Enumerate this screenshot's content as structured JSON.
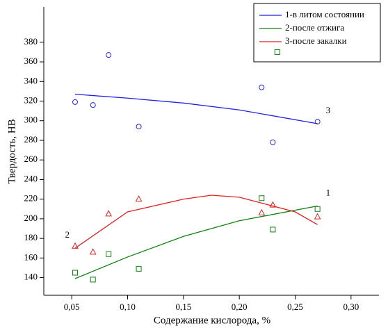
{
  "chart_data": {
    "type": "scatter",
    "x_label": "Содержание кислорода, %",
    "y_label": "Твердость, HB",
    "xlim": [
      0.025,
      0.325
    ],
    "ylim": [
      122,
      416
    ],
    "xticks": [
      {
        "value": 0.05,
        "label": "0,05"
      },
      {
        "value": 0.1,
        "label": "0,10"
      },
      {
        "value": 0.15,
        "label": "0,15"
      },
      {
        "value": 0.2,
        "label": "0,20"
      },
      {
        "value": 0.25,
        "label": "0,25"
      },
      {
        "value": 0.3,
        "label": "0,30"
      }
    ],
    "yticks": [
      140,
      160,
      180,
      200,
      220,
      240,
      260,
      280,
      300,
      320,
      340,
      360,
      380
    ],
    "legend": "top-right",
    "series": [
      {
        "name": "1-в литом состоянии",
        "color": "#2020e0",
        "marker": "circle",
        "x": [
          0.053,
          0.069,
          0.083,
          0.11,
          0.22,
          0.23,
          0.27
        ],
        "values": [
          319,
          316,
          367,
          294,
          334,
          278,
          299
        ],
        "fit": {
          "x": [
            0.053,
            0.1,
            0.15,
            0.2,
            0.27
          ],
          "values": [
            327,
            323,
            318,
            311,
            297
          ]
        },
        "curve_label": "3",
        "curve_label_at": "end"
      },
      {
        "name": "2-после отжига",
        "color": "#108010",
        "marker": "square",
        "x": [
          0.053,
          0.069,
          0.083,
          0.11,
          0.22,
          0.23,
          0.27,
          0.234
        ],
        "values": [
          145,
          138,
          164,
          149,
          221,
          189,
          210,
          370
        ],
        "fit": {
          "x": [
            0.053,
            0.1,
            0.15,
            0.2,
            0.27
          ],
          "values": [
            139,
            161,
            182,
            198,
            213
          ]
        },
        "curve_label": "1",
        "curve_label_at": "end"
      },
      {
        "name": "3-после закалки",
        "color": "#e02020",
        "marker": "triangle",
        "x": [
          0.053,
          0.069,
          0.083,
          0.11,
          0.22,
          0.23,
          0.27
        ],
        "values": [
          172,
          166,
          205,
          220,
          206,
          214,
          202
        ],
        "fit": {
          "x": [
            0.053,
            0.1,
            0.15,
            0.175,
            0.2,
            0.25,
            0.27
          ],
          "values": [
            170,
            207,
            220,
            224,
            222,
            207,
            194
          ]
        },
        "curve_label": "2",
        "curve_label_at": "start"
      }
    ]
  }
}
